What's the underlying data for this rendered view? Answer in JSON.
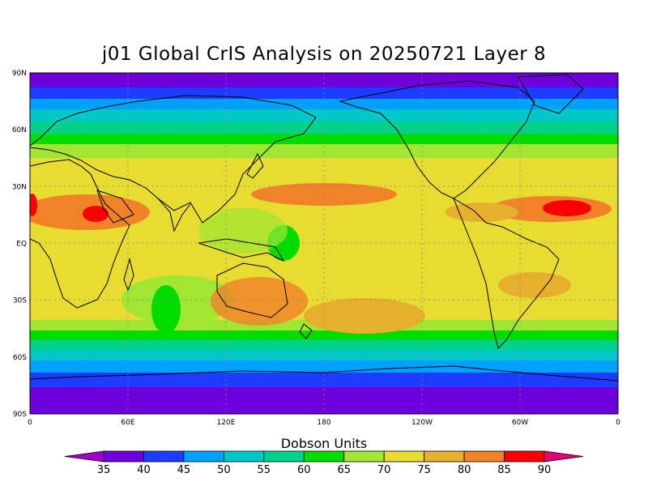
{
  "title": "j01 Global CrIS Analysis on 20250721 Layer 8",
  "units_label": "Dobson Units",
  "lat_ticks": [
    "90N",
    "60N",
    "30N",
    "EQ",
    "30S",
    "60S",
    "90S"
  ],
  "lon_ticks": [
    "0",
    "60E",
    "120E",
    "180",
    "120W",
    "60W",
    "0"
  ],
  "colorbar": {
    "labels": [
      "35",
      "40",
      "45",
      "50",
      "55",
      "60",
      "65",
      "70",
      "75",
      "80",
      "85",
      "90"
    ],
    "colors": [
      "#a000c8",
      "#6e00dc",
      "#1e3cff",
      "#00a0ff",
      "#00c8c8",
      "#00d28c",
      "#00dc00",
      "#a0e632",
      "#e6dc32",
      "#e6af2d",
      "#f08228",
      "#fa0000",
      "#e60078"
    ]
  },
  "chart_data": {
    "type": "heatmap",
    "title": "j01 Global CrIS Analysis on 20250721 Layer 8",
    "colorbar_label": "Dobson Units",
    "colorbar_levels": [
      35,
      40,
      45,
      50,
      55,
      60,
      65,
      70,
      75,
      80,
      85,
      90
    ],
    "xlim": [
      0,
      360
    ],
    "ylim": [
      -90,
      90
    ],
    "grid": true
  }
}
